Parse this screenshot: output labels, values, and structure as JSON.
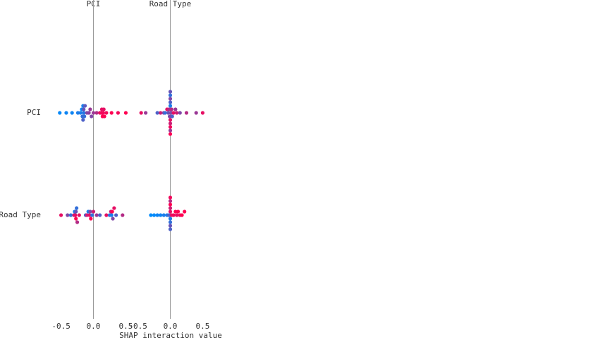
{
  "chart_data": {
    "type": "beeswarm",
    "xlabel": "SHAP interaction value",
    "columns": [
      "PCI",
      "Road Type"
    ],
    "rows": [
      "PCI",
      "Road Type"
    ],
    "xlim": [
      -0.55,
      0.55
    ],
    "xticks": [
      -0.5,
      {
        "value": 0,
        "label": "0.0"
      },
      0.5
    ],
    "colormap": [
      "#008bfb",
      "#ff0052"
    ],
    "panels": [
      [
        {
          "x": [
            -0.52,
            -0.42,
            -0.33,
            -0.24,
            -0.2,
            -0.18,
            -0.17,
            -0.16,
            -0.16,
            -0.15,
            -0.15,
            -0.14,
            -0.13,
            -0.1,
            -0.07,
            -0.05,
            -0.03,
            0.0,
            0.05,
            0.1,
            0.12,
            0.13,
            0.14,
            0.15,
            0.16,
            0.17,
            0.2,
            0.28,
            0.38,
            0.5
          ],
          "feature_values": [
            0.02,
            0.05,
            0.05,
            0.1,
            0.1,
            0.05,
            0.2,
            0.1,
            0.3,
            0.15,
            0.4,
            0.2,
            0.35,
            0.5,
            0.55,
            0.6,
            0.5,
            0.6,
            0.7,
            0.9,
            0.95,
            0.9,
            1,
            0.95,
            0.9,
            1,
            0.95,
            1,
            0.95,
            1
          ]
        },
        {
          "x": [
            -0.45,
            -0.38,
            -0.2,
            -0.15,
            -0.1,
            -0.08,
            -0.05,
            -0.03,
            -0.02,
            -0.01,
            0,
            0,
            0,
            0,
            0,
            0,
            0,
            0,
            0,
            0,
            0.01,
            0.02,
            0.03,
            0.05,
            0.08,
            0.1,
            0.15,
            0.25,
            0.4,
            0.5
          ],
          "feature_values": [
            0.9,
            0.6,
            0.3,
            0.8,
            0.5,
            0.2,
            0.9,
            0.4,
            0.7,
            0.5,
            0.1,
            0.9,
            0.3,
            0.8,
            0.5,
            0.95,
            0.2,
            0.6,
            0.4,
            1,
            0.5,
            0.7,
            0.3,
            0.9,
            0.6,
            0.8,
            0.5,
            0.7,
            0.6,
            0.9
          ]
        }
      ],
      [
        {
          "x": [
            -0.5,
            -0.4,
            -0.35,
            -0.3,
            -0.29,
            -0.28,
            -0.27,
            -0.27,
            -0.26,
            -0.25,
            -0.22,
            -0.12,
            -0.1,
            -0.08,
            -0.06,
            -0.05,
            -0.04,
            -0.02,
            0.0,
            0.05,
            0.1,
            0.2,
            0.25,
            0.27,
            0.28,
            0.29,
            0.3,
            0.32,
            0.35,
            0.45
          ],
          "feature_values": [
            0.9,
            0.5,
            0.2,
            0.8,
            0.1,
            0.9,
            0.4,
            1,
            0.2,
            0.7,
            0.9,
            0.3,
            0.8,
            0.1,
            0.9,
            0.5,
            1,
            0.2,
            0.8,
            0.6,
            0.3,
            0.9,
            0.2,
            0.8,
            0.1,
            1,
            0.5,
            0.9,
            0.3,
            0.7
          ]
        },
        {
          "x": [
            -0.3,
            -0.25,
            -0.2,
            -0.15,
            -0.1,
            -0.05,
            -0.02,
            0,
            0,
            0,
            0,
            0,
            0,
            0,
            0,
            0,
            0.02,
            0.05,
            0.08,
            0.1,
            0.12,
            0.15,
            0.18,
            0.22
          ],
          "feature_values": [
            0,
            0,
            0.05,
            0.05,
            0.1,
            0.1,
            0.3,
            0.9,
            0.1,
            0.8,
            0.2,
            1,
            0.4,
            0.7,
            0.3,
            0.95,
            0.9,
            0.95,
            1,
            0.9,
            1,
            0.95,
            1,
            1
          ]
        }
      ]
    ]
  }
}
